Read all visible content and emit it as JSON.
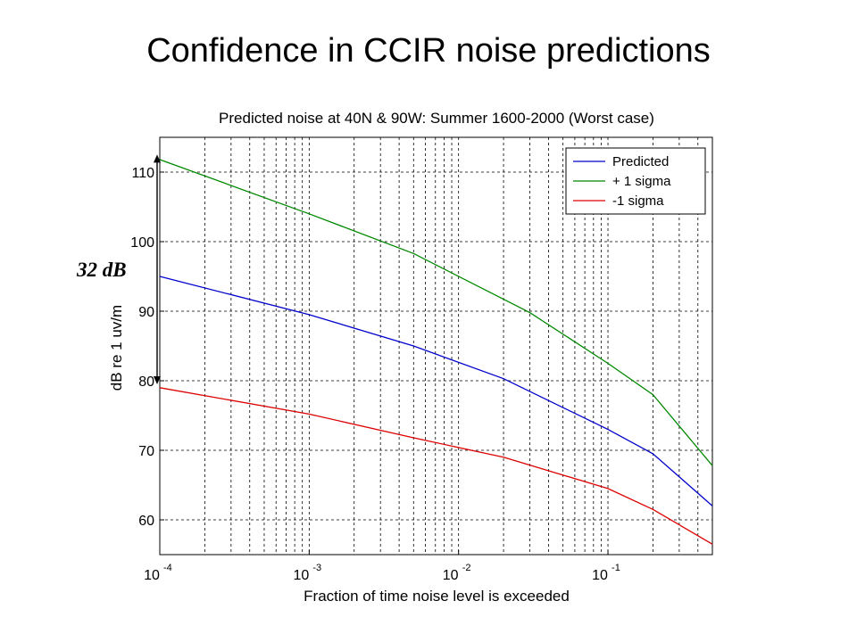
{
  "slide": {
    "title": "Confidence in CCIR noise predictions"
  },
  "chart_data": {
    "type": "line",
    "title": "Predicted noise at 40N & 90W: Summer 1600-2000 (Worst case)",
    "xlabel": "Fraction of time noise level is exceeded",
    "ylabel": "dB re 1 uv/m",
    "xscale": "log",
    "xlim": [
      0.0001,
      0.5
    ],
    "ylim": [
      55,
      115
    ],
    "grid": true,
    "legend_position": "top-right",
    "x_ticks": [
      {
        "base": "10",
        "exp": "-4",
        "value": 0.0001
      },
      {
        "base": "10",
        "exp": "-3",
        "value": 0.001
      },
      {
        "base": "10",
        "exp": "-2",
        "value": 0.01
      },
      {
        "base": "10",
        "exp": "-1",
        "value": 0.1
      }
    ],
    "y_ticks": [
      60,
      70,
      80,
      90,
      100,
      110
    ],
    "series": [
      {
        "name": "Predicted",
        "color": "#0000cc",
        "x": [
          0.0001,
          0.001,
          0.005,
          0.02,
          0.1,
          0.2,
          0.5
        ],
        "y": [
          95,
          89.5,
          85,
          80.3,
          73,
          69.5,
          62
        ]
      },
      {
        "name": "+ 1 sigma",
        "color": "#008800",
        "x": [
          0.0001,
          0.001,
          0.005,
          0.03,
          0.1,
          0.2,
          0.5
        ],
        "y": [
          111.8,
          104,
          98.3,
          89.8,
          82.5,
          78,
          67.8
        ]
      },
      {
        "name": "-1 sigma",
        "color": "#dd0000",
        "x": [
          0.0001,
          0.001,
          0.005,
          0.02,
          0.1,
          0.2,
          0.5
        ],
        "y": [
          79,
          75.2,
          71.8,
          69,
          64.5,
          61.5,
          56.5
        ]
      }
    ],
    "annotations": [
      {
        "text": "32 dB",
        "from": 112,
        "to": 80
      }
    ]
  }
}
